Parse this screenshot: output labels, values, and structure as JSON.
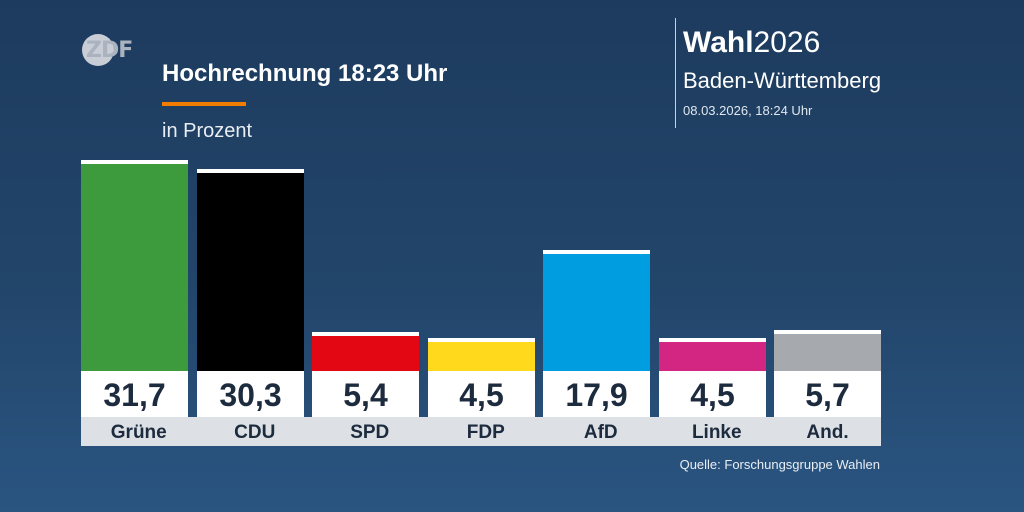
{
  "header": {
    "title": "Hochrechnung 18:23 Uhr",
    "subtitle": "in Prozent",
    "logo_text": "ZDF",
    "brand_bold": "Wahl",
    "brand_year": "2026",
    "region": "Baden-Württemberg",
    "timestamp": "08.03.2026, 18:24 Uhr"
  },
  "footer": {
    "source": "Quelle: Forschungsgruppe Wahlen"
  },
  "colors": {
    "accent": "#f07d00",
    "background": "#22456a"
  },
  "chart_data": {
    "type": "bar",
    "title": "Hochrechnung 18:23 Uhr",
    "ylabel": "in Prozent",
    "categories": [
      "Grüne",
      "CDU",
      "SPD",
      "FDP",
      "AfD",
      "Linke",
      "And."
    ],
    "values": [
      31.7,
      30.3,
      5.4,
      4.5,
      17.9,
      4.5,
      5.7
    ],
    "value_labels": [
      "31,7",
      "30,3",
      "5,4",
      "4,5",
      "17,9",
      "4,5",
      "5,7"
    ],
    "colors": [
      "#3d9a3d",
      "#000000",
      "#e30613",
      "#ffd91c",
      "#009ee0",
      "#d32582",
      "#a6a9ae"
    ],
    "ylim": [
      0,
      33
    ],
    "grid": false
  }
}
